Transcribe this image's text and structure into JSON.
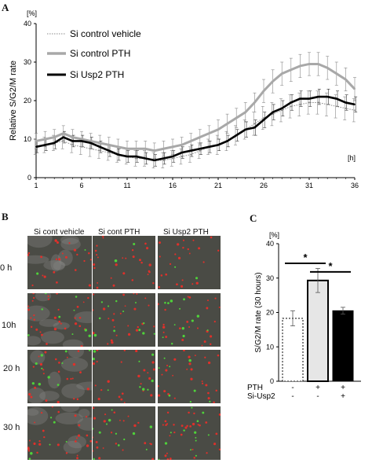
{
  "panels": {
    "a": "A",
    "b": "B",
    "c": "C"
  },
  "chart_data": [
    {
      "type": "line",
      "panel": "A",
      "y_unit": "[%]",
      "x_unit": "[h]",
      "ylabel": "Relative S/G2/M rate",
      "xlabel": "",
      "ylim": [
        0,
        40
      ],
      "xlim": [
        1,
        36
      ],
      "x_ticks": [
        1,
        6,
        11,
        16,
        21,
        26,
        31,
        36
      ],
      "y_ticks": [
        0,
        10,
        20,
        30,
        40
      ],
      "legend_position": "top-left",
      "x": [
        1,
        2,
        3,
        4,
        5,
        6,
        7,
        8,
        9,
        10,
        11,
        12,
        13,
        14,
        15,
        16,
        17,
        18,
        19,
        20,
        21,
        22,
        23,
        24,
        25,
        26,
        27,
        28,
        29,
        30,
        31,
        32,
        33,
        34,
        35,
        36
      ],
      "series": [
        {
          "name": "Si control vehicle",
          "color": "#888888",
          "style": "dotted",
          "values": [
            8,
            8.5,
            9,
            9.5,
            8.5,
            8,
            7.5,
            7,
            6.5,
            6,
            5.5,
            5,
            5,
            4.5,
            4.5,
            5,
            5.5,
            6,
            7,
            8,
            8.5,
            9.5,
            11,
            12.5,
            14,
            15.5,
            16.5,
            17.5,
            18.5,
            19,
            19.5,
            19.5,
            19,
            18.5,
            18,
            17.5
          ],
          "err": [
            2,
            2,
            2,
            2,
            2,
            2,
            2,
            2,
            2,
            2,
            2,
            2,
            2,
            2,
            2,
            2,
            2,
            2,
            2,
            2,
            2.5,
            2.5,
            2.5,
            2.5,
            3,
            3,
            3,
            3,
            3,
            3,
            3,
            3,
            3,
            3,
            3,
            3
          ]
        },
        {
          "name": "Si control PTH",
          "color": "#a8a8a8",
          "style": "solid",
          "values": [
            9.5,
            10,
            10.5,
            11.5,
            10.5,
            10,
            9.5,
            9,
            8.5,
            8,
            7.5,
            7.5,
            7.5,
            7,
            7.5,
            8,
            8.5,
            9.5,
            10.5,
            11.5,
            12.5,
            14,
            15.5,
            17,
            19.5,
            22.5,
            25,
            27,
            28,
            29,
            29.5,
            29.5,
            28.5,
            27,
            25.5,
            23
          ],
          "err": [
            2,
            2,
            2,
            2,
            2,
            2,
            2,
            2,
            2,
            2,
            2,
            2,
            2,
            2,
            2,
            2,
            2,
            2,
            2,
            2,
            2.5,
            2.5,
            2.5,
            2.5,
            2.5,
            3,
            3,
            3,
            3,
            3,
            3,
            3,
            3,
            3,
            3,
            3
          ]
        },
        {
          "name": "Si Usp2 PTH",
          "color": "#000000",
          "style": "solid",
          "values": [
            8,
            8.5,
            9,
            10.5,
            9.5,
            9.5,
            9,
            8,
            7,
            6,
            5.5,
            5.5,
            5,
            4.5,
            5,
            5.5,
            6.5,
            7,
            7.5,
            8,
            8.5,
            9.5,
            11,
            12.5,
            13,
            15,
            17,
            18,
            19.5,
            20.5,
            20.5,
            21,
            21,
            20.5,
            19.5,
            19
          ],
          "err": [
            1.5,
            1.5,
            1.5,
            1.5,
            1.5,
            1.5,
            1.5,
            1.5,
            1.5,
            1.5,
            1.5,
            1.5,
            1.5,
            1.5,
            1.5,
            1.5,
            1.5,
            1.5,
            1.5,
            1.5,
            1.5,
            1.5,
            1.5,
            2,
            2,
            2,
            2,
            2,
            2,
            2,
            2,
            2,
            2,
            2,
            2,
            2
          ]
        }
      ]
    },
    {
      "type": "bar",
      "panel": "C",
      "y_unit": "[%]",
      "ylabel": "S/G2/M rate (30 hours)",
      "ylim": [
        0,
        40
      ],
      "y_ticks": [
        0,
        10,
        20,
        30,
        40
      ],
      "categories": [
        "Si control vehicle",
        "Si control PTH",
        "Si Usp2 PTH"
      ],
      "values": [
        18.3,
        29.3,
        20.5
      ],
      "err": [
        2.2,
        3.5,
        1.0
      ],
      "fills": [
        "#ffffff",
        "#e6e6e6",
        "#000000"
      ],
      "borders": [
        "dashed",
        "thick",
        "solid"
      ],
      "rows": [
        {
          "label": "PTH",
          "marks": [
            "-",
            "+",
            "+"
          ]
        },
        {
          "label": "Si-Usp2",
          "marks": [
            "-",
            "-",
            "+"
          ]
        }
      ],
      "significance": [
        {
          "from": 0,
          "to": 1,
          "label": "*"
        },
        {
          "from": 1,
          "to": 2,
          "label": "*"
        }
      ]
    }
  ],
  "micrographs": {
    "columns": [
      "Si cont  vehicle",
      "Si cont  PTH",
      "Si Usp2  PTH"
    ],
    "rows": [
      "0 h",
      "10h",
      "20 h",
      "30 h"
    ]
  }
}
